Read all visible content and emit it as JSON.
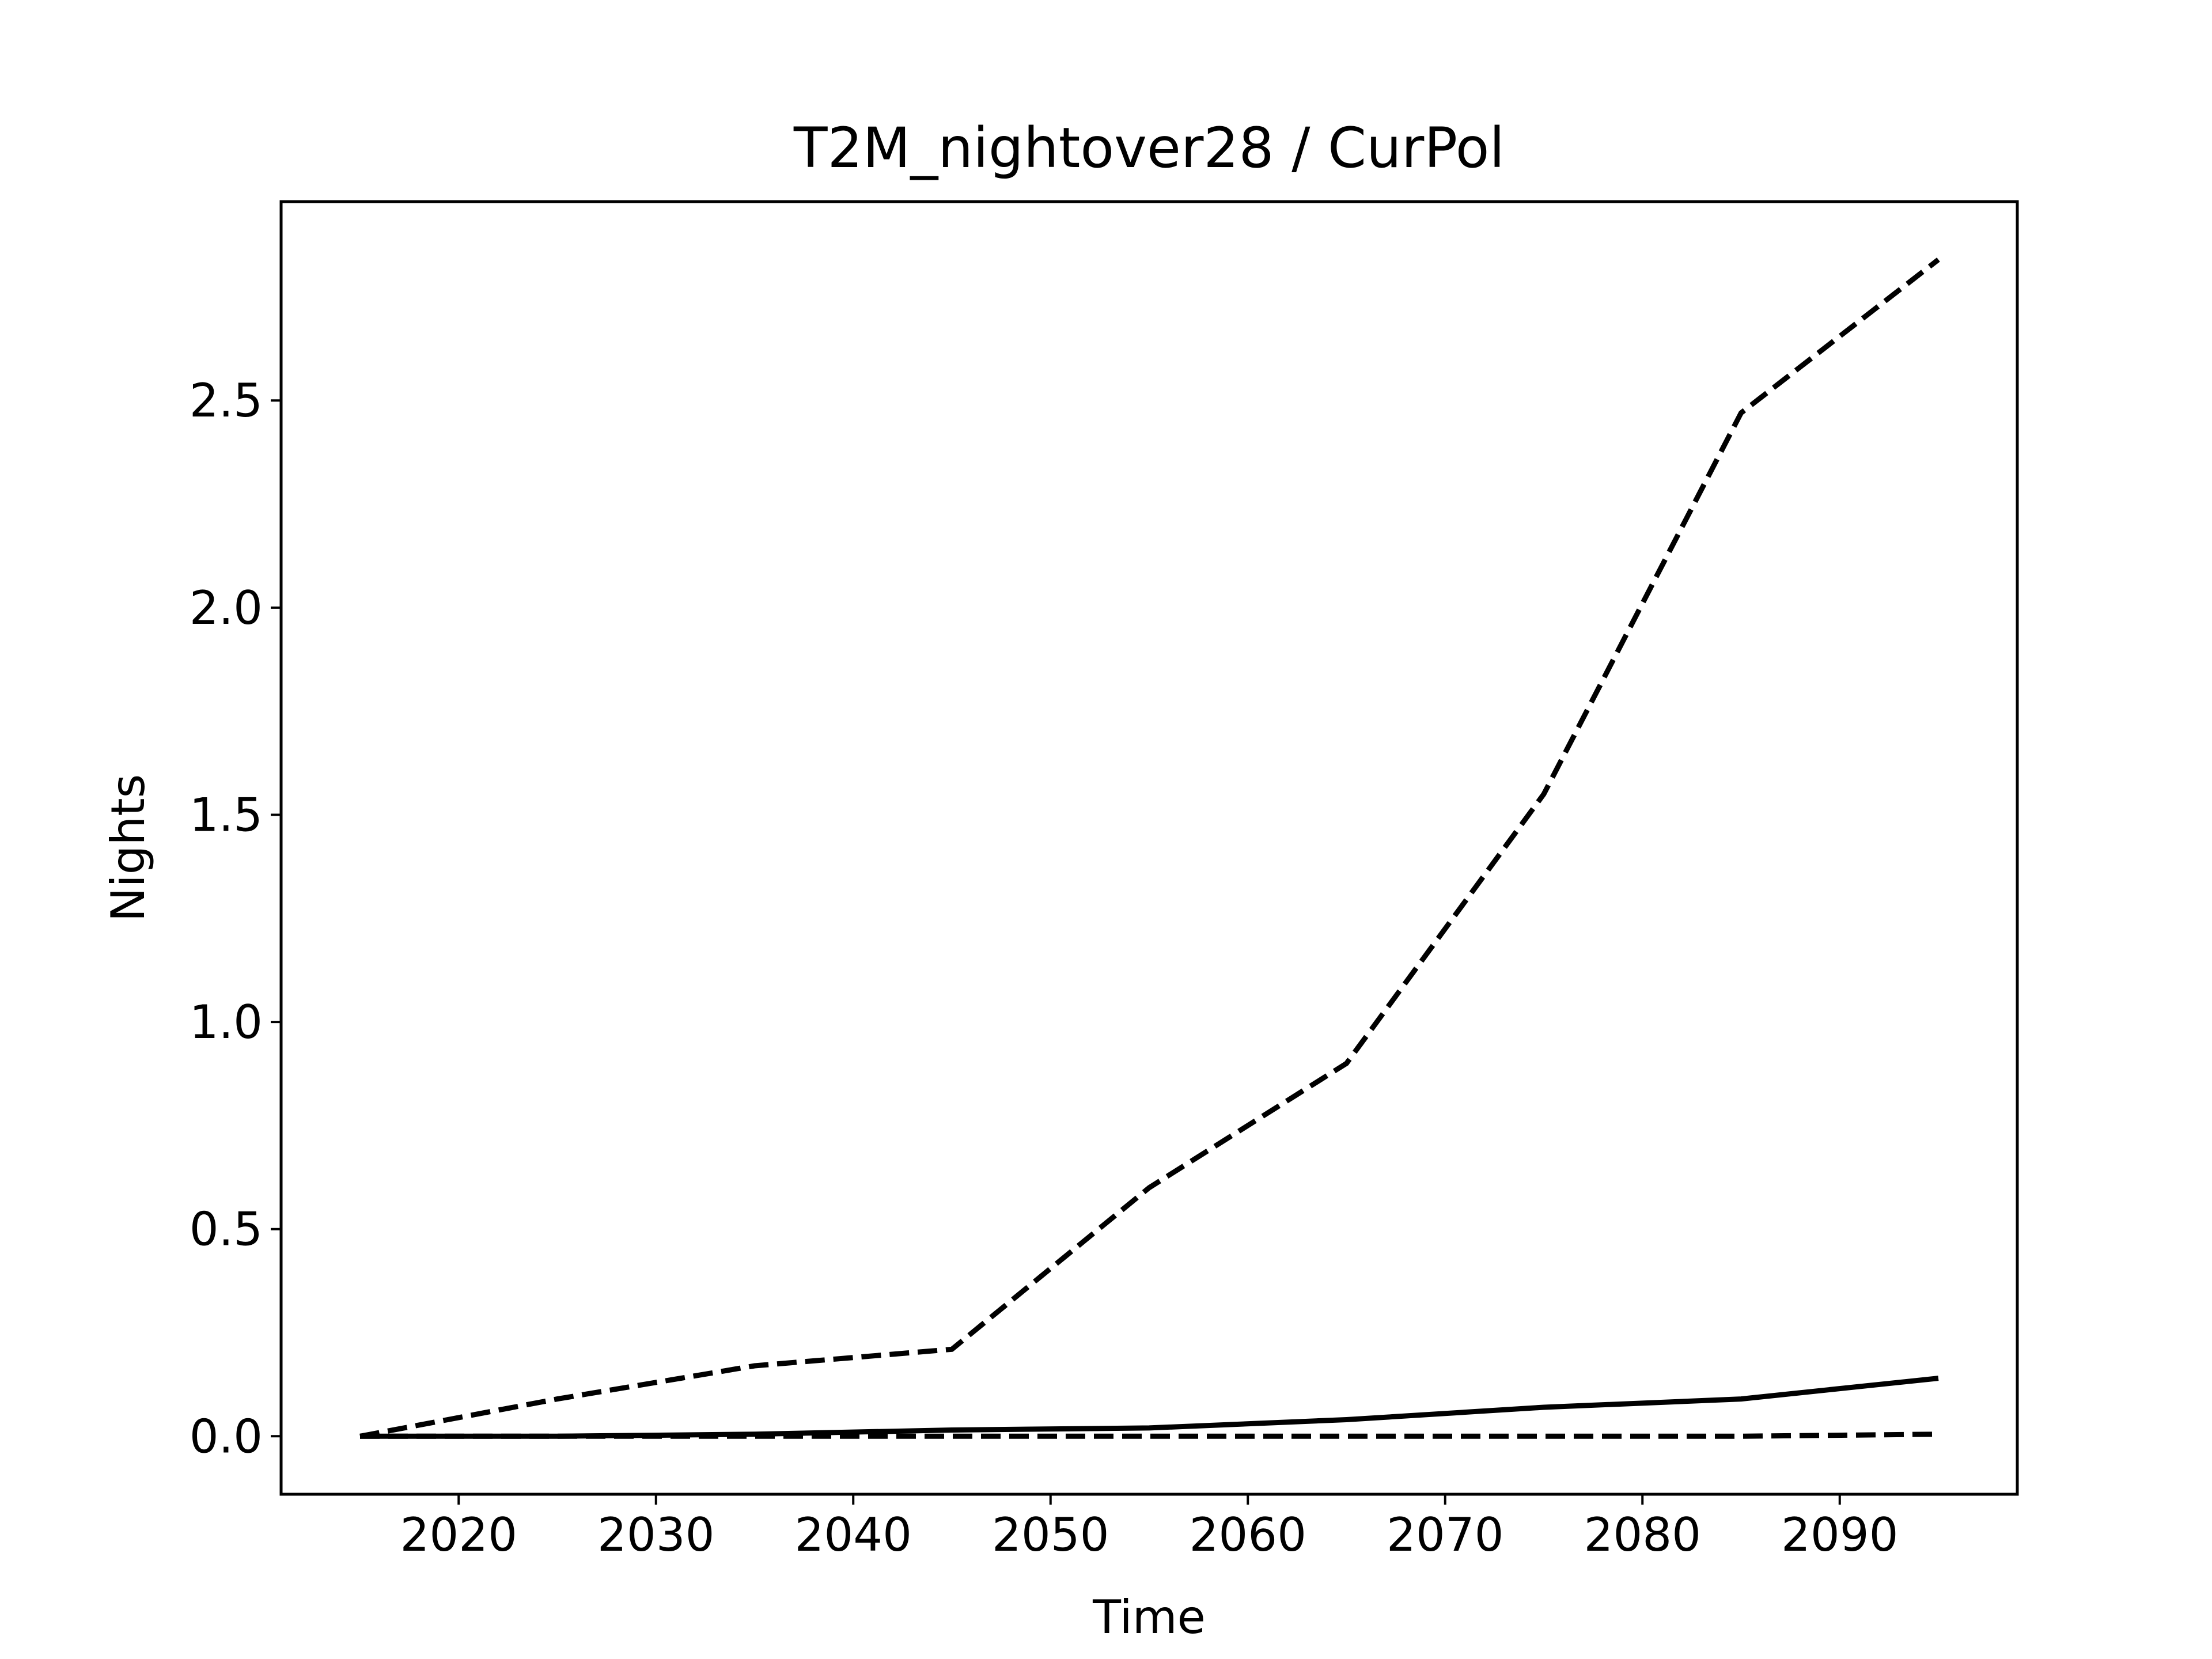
{
  "chart_data": {
    "type": "line",
    "title": "T2M_nightover28 / CurPol",
    "xlabel": "Time",
    "ylabel": "Nights",
    "xlim": [
      2011,
      2099
    ],
    "ylim": [
      -0.14,
      2.98
    ],
    "xticks": [
      2020,
      2030,
      2040,
      2050,
      2060,
      2070,
      2080,
      2090
    ],
    "yticks": [
      0.0,
      0.5,
      1.0,
      1.5,
      2.0,
      2.5
    ],
    "ytick_labels": [
      "0.0",
      "0.5",
      "1.0",
      "1.5",
      "2.0",
      "2.5"
    ],
    "grid": false,
    "legend": "none",
    "x": [
      2015,
      2025,
      2035,
      2045,
      2055,
      2065,
      2075,
      2085,
      2095
    ],
    "series": [
      {
        "style": "dashed",
        "color": "#000000",
        "values": [
          0.0,
          0.09,
          0.17,
          0.21,
          0.6,
          0.9,
          1.55,
          2.47,
          2.84
        ]
      },
      {
        "style": "solid",
        "color": "#000000",
        "values": [
          0.0,
          0.0,
          0.005,
          0.015,
          0.02,
          0.04,
          0.07,
          0.09,
          0.14
        ]
      },
      {
        "style": "dashed",
        "color": "#000000",
        "values": [
          0.0,
          0.0,
          0.0,
          0.0,
          0.0,
          0.0,
          0.0,
          0.0,
          0.005
        ]
      }
    ]
  }
}
